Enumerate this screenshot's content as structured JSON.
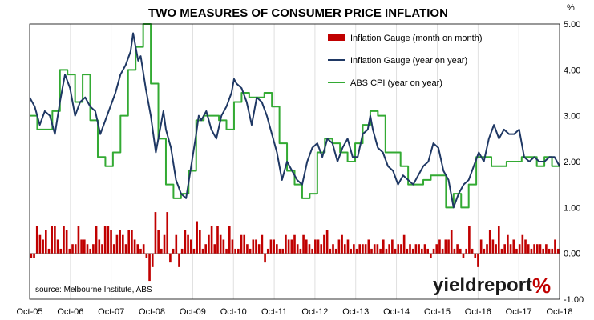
{
  "chart_data": {
    "type": "line",
    "title": "TWO MEASURES OF CONSUMER PRICE INFLATION",
    "y_unit": "%",
    "ylim": [
      -1.0,
      5.0
    ],
    "y_ticks": [
      "-1.00",
      "0.00",
      "1.00",
      "2.00",
      "3.00",
      "4.00",
      "5.00"
    ],
    "x_ticks": [
      "Oct-05",
      "Oct-06",
      "Oct-07",
      "Oct-08",
      "Oct-09",
      "Oct-10",
      "Oct-11",
      "Oct-12",
      "Oct-13",
      "Oct-14",
      "Oct-15",
      "Oct-16",
      "Oct-17",
      "Oct-18"
    ],
    "x_start": "Oct-05",
    "x_end": "Oct-18",
    "grid": "vertical",
    "legend_position": "top-right",
    "series": [
      {
        "name": "Inflation Gauge (month on month)",
        "kind": "bar",
        "color": "#c00000",
        "values": [
          -0.1,
          -0.1,
          0.6,
          0.4,
          0.3,
          0.5,
          0.1,
          0.6,
          0.6,
          0.3,
          0.1,
          0.6,
          0.5,
          0.1,
          0.2,
          0.2,
          0.6,
          0.3,
          0.3,
          0.2,
          0.1,
          0.2,
          0.6,
          0.3,
          0.2,
          0.6,
          0.6,
          0.5,
          0.2,
          0.4,
          0.5,
          0.4,
          0.2,
          0.5,
          0.5,
          0.3,
          0.2,
          0.1,
          0.2,
          -0.1,
          -0.6,
          -0.3,
          0.9,
          0.5,
          0.1,
          0.4,
          0.9,
          -0.2,
          0.1,
          0.4,
          -0.3,
          0.1,
          0.5,
          0.4,
          0.3,
          0.1,
          0.7,
          0.5,
          0.1,
          0.2,
          0.4,
          0.6,
          0.2,
          0.6,
          0.4,
          0.3,
          0.1,
          0.6,
          0.3,
          0.1,
          0.1,
          0.4,
          0.4,
          0.2,
          0.1,
          0.3,
          0.3,
          0.2,
          0.4,
          -0.2,
          0.1,
          0.3,
          0.3,
          0.2,
          0.1,
          0.1,
          0.4,
          0.3,
          0.3,
          0.4,
          0.2,
          0.1,
          0.4,
          0.3,
          0.2,
          0.1,
          0.3,
          0.3,
          0.2,
          0.4,
          0.5,
          0.1,
          0.2,
          0.1,
          0.3,
          0.4,
          0.2,
          0.3,
          0.1,
          0.2,
          0.1,
          0.2,
          0.2,
          0.2,
          0.3,
          0.1,
          0.2,
          0.2,
          0.1,
          0.3,
          0.1,
          0.2,
          0.3,
          0.1,
          0.2,
          0.2,
          0.4,
          0.1,
          0.2,
          0.1,
          0.2,
          0.2,
          0.1,
          0.2,
          0.1,
          -0.1,
          0.1,
          0.2,
          0.3,
          0.1,
          0.3,
          0.3,
          0.5,
          0.1,
          0.2,
          0.1,
          -0.1,
          0.1,
          0.6,
          0.1,
          -0.1,
          -0.3,
          0.3,
          0.1,
          0.2,
          0.5,
          0.3,
          0.2,
          0.6,
          0.1,
          0.2,
          0.4,
          0.2,
          0.3,
          0.1,
          0.2,
          0.4,
          0.3,
          0.2,
          0.1,
          0.2,
          0.2,
          0.2,
          0.1,
          0.2,
          0.1,
          0.1,
          0.3,
          0.1
        ]
      },
      {
        "name": "Inflation Gauge (year on year)",
        "kind": "line",
        "color": "#1f3864",
        "points": [
          [
            0,
            3.4
          ],
          [
            2,
            3.2
          ],
          [
            4,
            2.8
          ],
          [
            6,
            3.1
          ],
          [
            8,
            3.0
          ],
          [
            10,
            2.6
          ],
          [
            12,
            3.3
          ],
          [
            14,
            3.9
          ],
          [
            16,
            3.6
          ],
          [
            18,
            3.0
          ],
          [
            20,
            3.3
          ],
          [
            22,
            3.4
          ],
          [
            24,
            3.2
          ],
          [
            26,
            3.1
          ],
          [
            28,
            2.6
          ],
          [
            30,
            2.9
          ],
          [
            32,
            3.2
          ],
          [
            34,
            3.5
          ],
          [
            36,
            3.9
          ],
          [
            38,
            4.1
          ],
          [
            40,
            4.4
          ],
          [
            41,
            4.8
          ],
          [
            42,
            4.5
          ],
          [
            43,
            4.2
          ],
          [
            44,
            4.3
          ],
          [
            46,
            3.6
          ],
          [
            48,
            3.0
          ],
          [
            49,
            2.6
          ],
          [
            50,
            2.2
          ],
          [
            51,
            2.5
          ],
          [
            52,
            2.8
          ],
          [
            53,
            3.1
          ],
          [
            54,
            2.7
          ],
          [
            56,
            2.3
          ],
          [
            58,
            1.6
          ],
          [
            60,
            1.3
          ],
          [
            62,
            1.2
          ],
          [
            64,
            1.9
          ],
          [
            66,
            2.6
          ],
          [
            67,
            3.0
          ],
          [
            68,
            2.9
          ],
          [
            70,
            3.1
          ],
          [
            72,
            2.7
          ],
          [
            74,
            2.5
          ],
          [
            76,
            3.0
          ],
          [
            78,
            3.2
          ],
          [
            80,
            3.5
          ],
          [
            81,
            3.8
          ],
          [
            82,
            3.7
          ],
          [
            84,
            3.6
          ],
          [
            86,
            3.3
          ],
          [
            88,
            2.8
          ],
          [
            90,
            3.4
          ],
          [
            92,
            3.3
          ],
          [
            94,
            3.0
          ],
          [
            96,
            2.6
          ],
          [
            98,
            2.2
          ],
          [
            100,
            1.6
          ],
          [
            102,
            2.0
          ],
          [
            104,
            1.8
          ],
          [
            106,
            1.6
          ],
          [
            108,
            1.5
          ],
          [
            110,
            2.0
          ],
          [
            112,
            2.3
          ],
          [
            114,
            2.4
          ],
          [
            116,
            2.1
          ],
          [
            118,
            2.5
          ],
          [
            120,
            2.4
          ],
          [
            122,
            2.0
          ],
          [
            124,
            2.3
          ],
          [
            126,
            2.5
          ],
          [
            128,
            2.1
          ],
          [
            130,
            2.1
          ],
          [
            132,
            2.6
          ],
          [
            134,
            2.7
          ],
          [
            135,
            3.0
          ],
          [
            136,
            2.7
          ],
          [
            138,
            2.3
          ],
          [
            140,
            2.2
          ],
          [
            142,
            1.9
          ],
          [
            144,
            1.8
          ],
          [
            146,
            1.5
          ],
          [
            148,
            1.7
          ],
          [
            150,
            1.6
          ],
          [
            152,
            1.5
          ],
          [
            154,
            1.7
          ],
          [
            156,
            1.9
          ],
          [
            158,
            2.0
          ],
          [
            160,
            2.4
          ],
          [
            162,
            2.3
          ],
          [
            164,
            1.8
          ],
          [
            166,
            1.6
          ],
          [
            168,
            1.0
          ],
          [
            170,
            1.3
          ],
          [
            172,
            1.5
          ],
          [
            174,
            1.6
          ],
          [
            176,
            1.9
          ],
          [
            178,
            2.2
          ],
          [
            180,
            2.0
          ],
          [
            182,
            2.5
          ],
          [
            184,
            2.8
          ],
          [
            186,
            2.5
          ],
          [
            188,
            2.7
          ],
          [
            190,
            2.6
          ],
          [
            192,
            2.6
          ],
          [
            194,
            2.7
          ],
          [
            196,
            2.1
          ],
          [
            198,
            2.0
          ],
          [
            200,
            2.1
          ],
          [
            202,
            2.0
          ],
          [
            204,
            2.0
          ],
          [
            206,
            2.1
          ],
          [
            208,
            2.1
          ],
          [
            210,
            1.9
          ]
        ]
      },
      {
        "name": "ABS CPI (year on year)",
        "kind": "line",
        "color": "#33aa33",
        "step": true,
        "points": [
          [
            0,
            3.0
          ],
          [
            3,
            2.7
          ],
          [
            6,
            2.7
          ],
          [
            9,
            3.1
          ],
          [
            12,
            4.0
          ],
          [
            15,
            3.9
          ],
          [
            18,
            3.3
          ],
          [
            21,
            3.9
          ],
          [
            24,
            2.9
          ],
          [
            27,
            2.1
          ],
          [
            30,
            1.9
          ],
          [
            33,
            2.2
          ],
          [
            36,
            3.0
          ],
          [
            39,
            4.0
          ],
          [
            42,
            4.5
          ],
          [
            45,
            5.0
          ],
          [
            48,
            3.7
          ],
          [
            51,
            2.5
          ],
          [
            54,
            1.5
          ],
          [
            57,
            1.2
          ],
          [
            60,
            1.3
          ],
          [
            63,
            1.8
          ],
          [
            66,
            2.9
          ],
          [
            69,
            3.0
          ],
          [
            72,
            3.0
          ],
          [
            75,
            2.9
          ],
          [
            78,
            2.7
          ],
          [
            81,
            3.3
          ],
          [
            84,
            3.5
          ],
          [
            87,
            3.4
          ],
          [
            90,
            3.4
          ],
          [
            93,
            3.5
          ],
          [
            96,
            3.2
          ],
          [
            99,
            2.4
          ],
          [
            102,
            1.8
          ],
          [
            105,
            1.5
          ],
          [
            108,
            1.2
          ],
          [
            111,
            1.3
          ],
          [
            114,
            2.2
          ],
          [
            117,
            2.5
          ],
          [
            120,
            2.4
          ],
          [
            123,
            2.2
          ],
          [
            126,
            2.0
          ],
          [
            129,
            2.4
          ],
          [
            132,
            2.8
          ],
          [
            135,
            3.1
          ],
          [
            138,
            3.0
          ],
          [
            141,
            2.2
          ],
          [
            144,
            2.2
          ],
          [
            147,
            1.9
          ],
          [
            150,
            1.5
          ],
          [
            153,
            1.5
          ],
          [
            156,
            1.6
          ],
          [
            159,
            1.7
          ],
          [
            162,
            1.7
          ],
          [
            165,
            1.0
          ],
          [
            168,
            1.3
          ],
          [
            171,
            1.0
          ],
          [
            174,
            1.5
          ],
          [
            177,
            2.1
          ],
          [
            180,
            2.1
          ],
          [
            183,
            1.9
          ],
          [
            186,
            1.9
          ],
          [
            189,
            2.0
          ],
          [
            192,
            2.0
          ],
          [
            195,
            2.1
          ],
          [
            198,
            2.1
          ],
          [
            201,
            1.9
          ],
          [
            204,
            2.1
          ],
          [
            207,
            1.9
          ],
          [
            210,
            1.9
          ]
        ]
      }
    ]
  },
  "source_text": "source: Melbourne Institute, ABS",
  "brand": {
    "word": "yieldreport",
    "mark": "%",
    "word_color": "#1a1a1a",
    "mark_color": "#c00000"
  }
}
